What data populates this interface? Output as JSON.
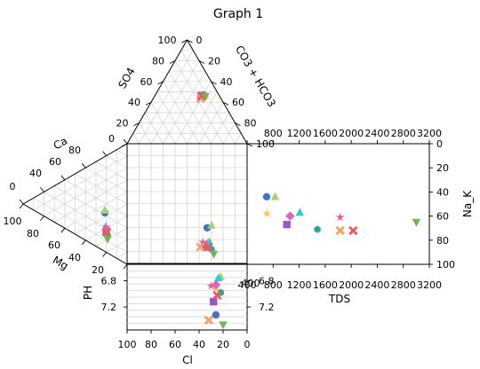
{
  "chart_data": {
    "type": "scatter",
    "title": "Graph 1",
    "panels": {
      "cation_triangle": {
        "axes": [
          "Ca",
          "Mg"
        ],
        "ticks": [
          "0",
          "20",
          "40",
          "60",
          "80",
          "100"
        ]
      },
      "anion_triangle": {
        "axes": [
          "SO4",
          "Cl",
          "CO3 + HCO3"
        ],
        "ticks": [
          "0",
          "20",
          "40",
          "60",
          "80",
          "100"
        ]
      },
      "diamond_top": {
        "axes": [
          "SO4",
          "CO3 + HCO3"
        ],
        "ticks_left": [
          "100",
          "80",
          "60",
          "40",
          "20",
          "0"
        ],
        "ticks_right": [
          "0",
          "20",
          "40",
          "60",
          "80",
          "100"
        ]
      },
      "tds_panel": {
        "xlabel": "TDS",
        "ylabel": "Na_K",
        "xlim": [
          400,
          3200
        ],
        "ylim": [
          0,
          100
        ],
        "xticks": [
          "400",
          "800",
          "1200",
          "1600",
          "2000",
          "2400",
          "2800",
          "3200"
        ],
        "yticks": [
          "0",
          "20",
          "40",
          "60",
          "80",
          "100"
        ]
      },
      "ph_panel": {
        "xlabel": "Cl",
        "ylabel": "PH",
        "xticks": [
          "100",
          "80",
          "60",
          "40",
          "20",
          "0"
        ],
        "yticks": [
          "6.8",
          "7.2"
        ]
      },
      "ph_tds_panel": {
        "xticks": [
          "400"
        ],
        "yticks": [
          "6.8",
          "7.2"
        ]
      }
    },
    "samples": [
      {
        "color": "#4472c4",
        "marker": "circle",
        "ca": 46,
        "mg": 28,
        "cl": 26,
        "hco3": 62,
        "so4": 12,
        "nak": 44,
        "tds": 700,
        "ph": 7.32
      },
      {
        "color": "#a5d36b",
        "marker": "triangle",
        "ca": 48,
        "mg": 26,
        "cl": 22,
        "hco3": 66,
        "so4": 12,
        "nak": 44,
        "tds": 830,
        "ph": 6.74
      },
      {
        "color": "#f7c948",
        "marker": "star",
        "ca": 36,
        "mg": 40,
        "cl": 26,
        "hco3": 61,
        "so4": 13,
        "nak": 58,
        "tds": 705,
        "ph": 6.92
      },
      {
        "color": "#9a57cd",
        "marker": "square",
        "ca": 32,
        "mg": 44,
        "cl": 28,
        "hco3": 58,
        "so4": 14,
        "nak": 67,
        "tds": 1010,
        "ph": 7.12
      },
      {
        "color": "#e062b5",
        "marker": "diamond",
        "ca": 30,
        "mg": 42,
        "cl": 26,
        "hco3": 60,
        "so4": 14,
        "nak": 60,
        "tds": 1060,
        "ph": 6.86
      },
      {
        "color": "#2fc8d6",
        "marker": "triangle",
        "ca": 38,
        "mg": 40,
        "cl": 24,
        "hco3": 62,
        "so4": 14,
        "nak": 57,
        "tds": 1210,
        "ph": 6.76
      },
      {
        "color": "#27a79b",
        "marker": "hexagon",
        "ca": 27,
        "mg": 46,
        "cl": 22,
        "hco3": 64,
        "so4": 14,
        "nak": 71,
        "tds": 1480,
        "ph": 6.98
      },
      {
        "color": "#e45ea3",
        "marker": "star",
        "ca": 33,
        "mg": 40,
        "cl": 30,
        "hco3": 56,
        "so4": 14,
        "nak": 61,
        "tds": 1830,
        "ph": 6.88
      },
      {
        "color": "#f4a262",
        "marker": "x",
        "ca": 30,
        "mg": 44,
        "cl": 32,
        "hco3": 55,
        "so4": 13,
        "nak": 72,
        "tds": 1830,
        "ph": 7.4
      },
      {
        "color": "#e9585f",
        "marker": "x",
        "ca": 31,
        "mg": 44,
        "cl": 25,
        "hco3": 61,
        "so4": 14,
        "nak": 72,
        "tds": 2030,
        "ph": 7.02
      },
      {
        "color": "#6fb550",
        "marker": "triangle-down",
        "ca": 20,
        "mg": 50,
        "cl": 20,
        "hco3": 70,
        "so4": 10,
        "nak": 65,
        "tds": 3000,
        "ph": 7.47
      }
    ]
  }
}
